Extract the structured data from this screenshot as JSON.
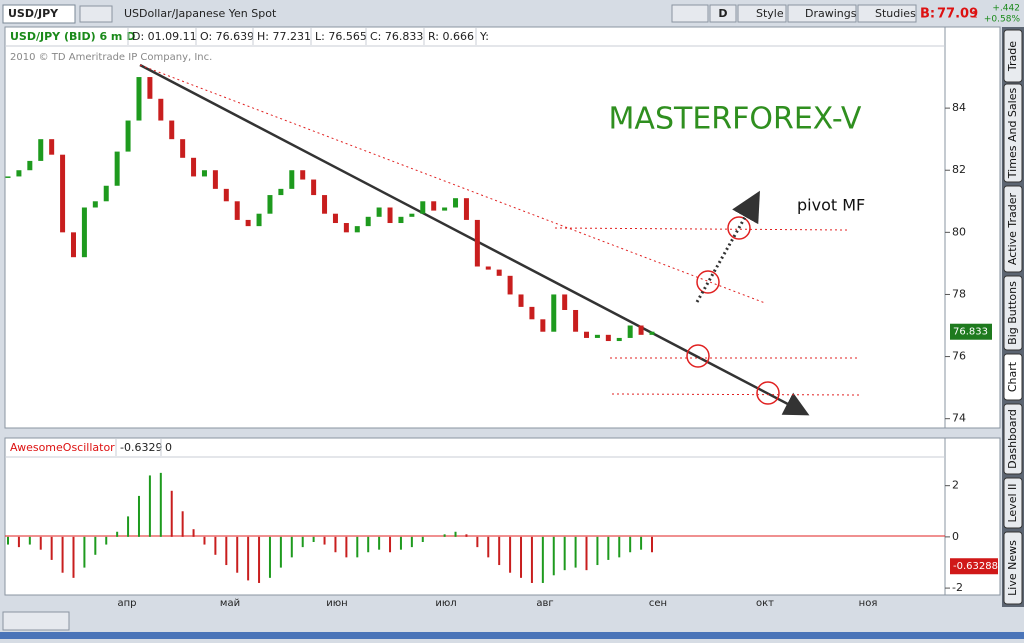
{
  "toolbar": {
    "symbol": "USD/JPY",
    "description": "USDollar/Japanese Yen Spot",
    "period": "D",
    "style": "Style",
    "drawings": "Drawings",
    "studies": "Studies",
    "bid_label": "B:",
    "bid": "77.09",
    "bid_fraction": "1",
    "change": "+.442",
    "change_pct": "+0.58%"
  },
  "info": {
    "name": "USD/JPY (BID) 6 m D",
    "date": "D: 01.09.11",
    "open": "O: 76.639",
    "high": "H: 77.231",
    "low": "L: 76.565",
    "close": "C: 76.833",
    "range": "R: 0.666",
    "y": "Y:"
  },
  "copyright": "2010 © TD Ameritrade IP Company, Inc.",
  "annotations": {
    "watermark": "MASTERFOREX-V",
    "pivot": "pivot MF"
  },
  "price": {
    "last_tag": "76.833",
    "ylim": [
      73.7,
      86.0
    ],
    "yticks": [
      74,
      76,
      78,
      80,
      82,
      84
    ],
    "close": [
      81.8,
      82.0,
      82.3,
      83.0,
      82.5,
      80.0,
      79.2,
      80.8,
      81.0,
      81.5,
      82.6,
      83.6,
      85.0,
      84.3,
      83.6,
      83.0,
      82.4,
      81.8,
      82.0,
      81.4,
      81.0,
      80.4,
      80.2,
      80.6,
      81.2,
      81.4,
      82.0,
      81.7,
      81.2,
      80.6,
      80.3,
      80.0,
      80.2,
      80.5,
      80.8,
      80.3,
      80.5,
      80.6,
      81.0,
      80.7,
      80.8,
      81.1,
      80.4,
      78.9,
      78.8,
      78.6,
      78.0,
      77.6,
      77.2,
      76.8,
      78.0,
      77.5,
      76.8,
      76.6,
      76.7,
      76.5,
      76.6,
      77.0,
      76.7,
      76.8
    ]
  },
  "oscillator": {
    "name": "AwesomeOscillator",
    "value": "-0.6329",
    "zero": "0",
    "last_tag": "-0.63288",
    "ylim": [
      -2.27,
      3.12
    ],
    "yticks": [
      -2,
      0,
      2
    ],
    "values": [
      -0.3,
      -0.4,
      -0.3,
      -0.5,
      -0.9,
      -1.4,
      -1.6,
      -1.2,
      -0.7,
      -0.3,
      0.2,
      0.8,
      1.6,
      2.4,
      2.5,
      1.8,
      1.0,
      0.3,
      -0.3,
      -0.7,
      -1.1,
      -1.4,
      -1.7,
      -1.8,
      -1.6,
      -1.2,
      -0.8,
      -0.4,
      -0.2,
      -0.3,
      -0.6,
      -0.8,
      -0.8,
      -0.6,
      -0.5,
      -0.6,
      -0.5,
      -0.4,
      -0.2,
      0.0,
      0.1,
      0.2,
      0.1,
      -0.4,
      -0.8,
      -1.1,
      -1.4,
      -1.6,
      -1.8,
      -1.8,
      -1.5,
      -1.3,
      -1.2,
      -1.3,
      -1.1,
      -0.9,
      -0.8,
      -0.6,
      -0.5,
      -0.6
    ]
  },
  "months": [
    "апр",
    "май",
    "июн",
    "июл",
    "авг",
    "сен",
    "окт",
    "ноя"
  ],
  "side_tabs": [
    "Trade",
    "Times And Sales",
    "Active Trader",
    "Big Buttons",
    "Chart",
    "Dashboard",
    "Level II",
    "Live News"
  ]
}
